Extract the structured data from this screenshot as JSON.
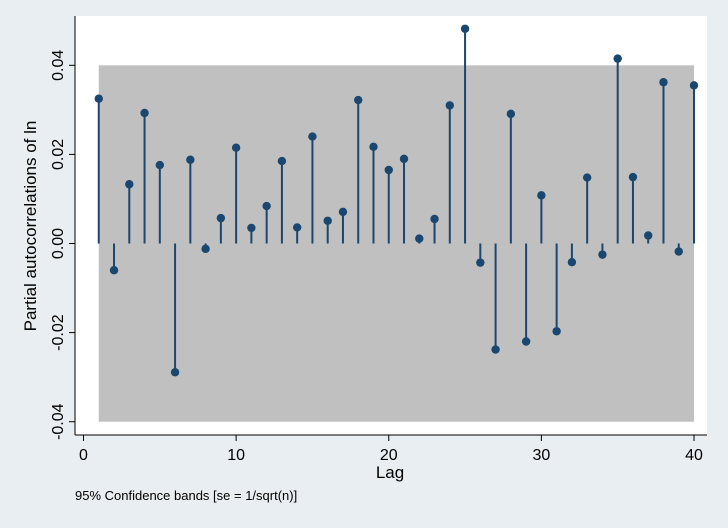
{
  "chart_data": {
    "type": "pacf",
    "title": "",
    "xlabel": "Lag",
    "ylabel": "Partial autocorrelations of ln",
    "note": "95% Confidence bands [se = 1/sqrt(n)]",
    "xlim": [
      0,
      40
    ],
    "ylim": [
      -0.04,
      0.048
    ],
    "x_ticks": [
      0,
      10,
      20,
      30,
      40
    ],
    "x_tick_labels": [
      "0",
      "10",
      "20",
      "30",
      "40"
    ],
    "y_ticks": [
      -0.04,
      -0.02,
      0.0,
      0.02,
      0.04
    ],
    "y_tick_labels": [
      "-0.04",
      "-0.02",
      "0.00",
      "0.02",
      "0.04"
    ],
    "confidence_band": [
      -0.04,
      0.04
    ],
    "lags": [
      1,
      2,
      3,
      4,
      5,
      6,
      7,
      8,
      9,
      10,
      11,
      12,
      13,
      14,
      15,
      16,
      17,
      18,
      19,
      20,
      21,
      22,
      23,
      24,
      25,
      26,
      27,
      28,
      29,
      30,
      31,
      32,
      33,
      34,
      35,
      36,
      37,
      38,
      39,
      40
    ],
    "values": [
      0.0325,
      -0.006,
      0.0133,
      0.0293,
      0.0176,
      -0.0289,
      0.0188,
      -0.0012,
      0.0057,
      0.0215,
      0.0035,
      0.0084,
      0.0185,
      0.0036,
      0.024,
      0.0051,
      0.0071,
      0.0322,
      0.0217,
      0.0165,
      0.019,
      0.0011,
      0.0055,
      0.031,
      0.0482,
      -0.0043,
      -0.0238,
      0.0291,
      -0.022,
      0.0108,
      -0.0197,
      -0.0042,
      0.0148,
      -0.0025,
      0.0415,
      0.0149,
      0.0018,
      0.0362,
      -0.0018,
      0.0355
    ],
    "colors": {
      "background": "#e8eef1",
      "plot_area": "#ffffff",
      "band": "#c0c0c0",
      "stem": "#1a476f",
      "marker": "#1a476f"
    }
  }
}
